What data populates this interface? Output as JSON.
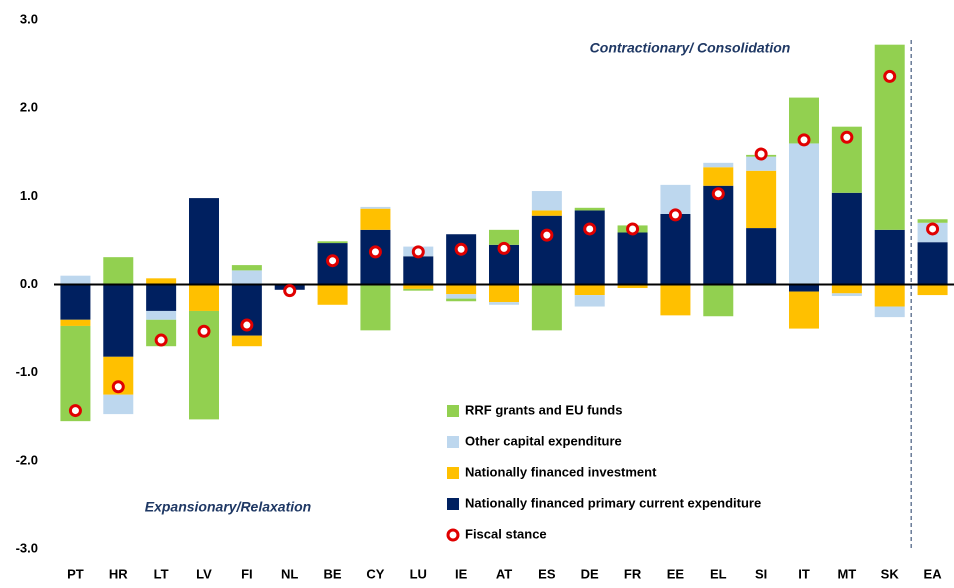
{
  "chart_data": {
    "type": "bar",
    "stacked": true,
    "annotations": [
      "Contractionary/ Consolidation",
      "Expansionary/Relaxation"
    ],
    "categories": [
      "PT",
      "HR",
      "LT",
      "LV",
      "FI",
      "NL",
      "BE",
      "CY",
      "LU",
      "IE",
      "AT",
      "ES",
      "DE",
      "FR",
      "EE",
      "EL",
      "SI",
      "IT",
      "MT",
      "SK",
      "EA"
    ],
    "series": [
      {
        "name": "RRF grants and EU funds",
        "color": "#92d050",
        "values": [
          -1.08,
          0.31,
          -0.3,
          -1.23,
          0.06,
          0,
          0.02,
          -0.52,
          -0.02,
          -0.03,
          0.17,
          -0.52,
          0.03,
          0.08,
          0,
          -0.36,
          0.02,
          0.52,
          0.75,
          2.1,
          0.04
        ]
      },
      {
        "name": "Other capital expenditure",
        "color": "#bdd7ee",
        "values": [
          0.1,
          -0.22,
          -0.1,
          0,
          0.16,
          0,
          0,
          0.02,
          0.11,
          -0.05,
          -0.03,
          0.22,
          -0.13,
          0,
          0.33,
          0.05,
          0.16,
          1.6,
          -0.03,
          -0.12,
          0.22
        ]
      },
      {
        "name": "Nationally financed investment",
        "color": "#ffc000",
        "values": [
          -0.07,
          -0.43,
          0.07,
          -0.3,
          -0.12,
          0,
          -0.23,
          0.24,
          -0.05,
          -0.11,
          -0.2,
          0.06,
          -0.12,
          -0.04,
          -0.35,
          0.21,
          0.65,
          -0.42,
          -0.1,
          -0.25,
          -0.12
        ]
      },
      {
        "name": "Nationally financed  primary current expenditure",
        "color": "#002060",
        "values": [
          -0.4,
          -0.82,
          -0.3,
          0.98,
          -0.58,
          -0.06,
          0.47,
          0.62,
          0.32,
          0.57,
          0.45,
          0.78,
          0.84,
          0.59,
          0.8,
          1.12,
          0.64,
          -0.08,
          1.04,
          0.62,
          0.48
        ]
      },
      {
        "name": "Fiscal stance",
        "type": "scatter",
        "color": "#e00000",
        "values": [
          -1.43,
          -1.16,
          -0.63,
          -0.53,
          -0.46,
          -0.07,
          0.27,
          0.37,
          0.37,
          0.4,
          0.41,
          0.56,
          0.63,
          0.63,
          0.79,
          1.03,
          1.48,
          1.64,
          1.67,
          2.36,
          0.63
        ]
      }
    ],
    "ylim": [
      -3,
      3
    ],
    "yticks": [
      {
        "value": -3,
        "label": "-3.0"
      },
      {
        "value": -2,
        "label": "-2.0"
      },
      {
        "value": -1,
        "label": "-1.0"
      },
      {
        "value": 0,
        "label": "0.0"
      },
      {
        "value": 1,
        "label": "1.0"
      },
      {
        "value": 2,
        "label": "2.0"
      },
      {
        "value": 3,
        "label": "3.0"
      }
    ],
    "grid": false
  }
}
